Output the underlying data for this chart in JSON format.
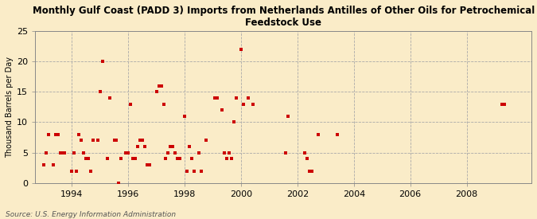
{
  "title": "Monthly Gulf Coast (PADD 3) Imports from Netherlands Antilles of Other Oils for Petrochemical\nFeedstock Use",
  "ylabel": "Thousand Barrels per Day",
  "source": "Source: U.S. Energy Information Administration",
  "background_color": "#faecc8",
  "plot_bg_color": "#faecc8",
  "marker_color": "#cc0000",
  "marker_size": 10,
  "ylim": [
    0,
    25
  ],
  "yticks": [
    0,
    5,
    10,
    15,
    20,
    25
  ],
  "xlim": [
    1992.7,
    2010.3
  ],
  "xticks": [
    1994,
    1996,
    1998,
    2000,
    2002,
    2004,
    2006,
    2008
  ],
  "scatter_x": [
    1993.0,
    1993.083,
    1993.167,
    1993.333,
    1993.417,
    1993.5,
    1993.583,
    1993.667,
    1993.75,
    1994.0,
    1994.083,
    1994.167,
    1994.25,
    1994.333,
    1994.417,
    1994.5,
    1994.583,
    1994.667,
    1994.75,
    1994.917,
    1995.0,
    1995.083,
    1995.25,
    1995.333,
    1995.5,
    1995.583,
    1995.667,
    1995.75,
    1995.917,
    1996.0,
    1996.083,
    1996.167,
    1996.25,
    1996.333,
    1996.417,
    1996.5,
    1996.583,
    1996.667,
    1996.75,
    1997.0,
    1997.083,
    1997.167,
    1997.25,
    1997.333,
    1997.417,
    1997.5,
    1997.583,
    1997.667,
    1997.75,
    1997.833,
    1998.0,
    1998.083,
    1998.167,
    1998.25,
    1998.333,
    1998.5,
    1998.583,
    1998.75,
    1999.083,
    1999.167,
    1999.333,
    1999.417,
    1999.5,
    1999.583,
    1999.667,
    1999.75,
    1999.833,
    2000.0,
    2000.083,
    2000.25,
    2000.417,
    2001.583,
    2001.667,
    2002.25,
    2002.333,
    2002.417,
    2002.5,
    2002.75,
    2003.417,
    2009.25,
    2009.333
  ],
  "scatter_y": [
    3,
    5,
    8,
    3,
    8,
    8,
    5,
    5,
    5,
    2,
    5,
    2,
    8,
    7,
    5,
    4,
    4,
    2,
    7,
    7,
    15,
    20,
    4,
    14,
    7,
    7,
    0,
    4,
    5,
    5,
    13,
    4,
    4,
    6,
    7,
    7,
    6,
    3,
    3,
    15,
    16,
    16,
    13,
    4,
    5,
    6,
    6,
    5,
    4,
    4,
    11,
    2,
    6,
    4,
    2,
    5,
    2,
    7,
    14,
    14,
    12,
    5,
    4,
    5,
    4,
    10,
    14,
    22,
    13,
    14,
    13,
    5,
    11,
    5,
    4,
    2,
    2,
    8,
    8,
    13,
    13
  ]
}
